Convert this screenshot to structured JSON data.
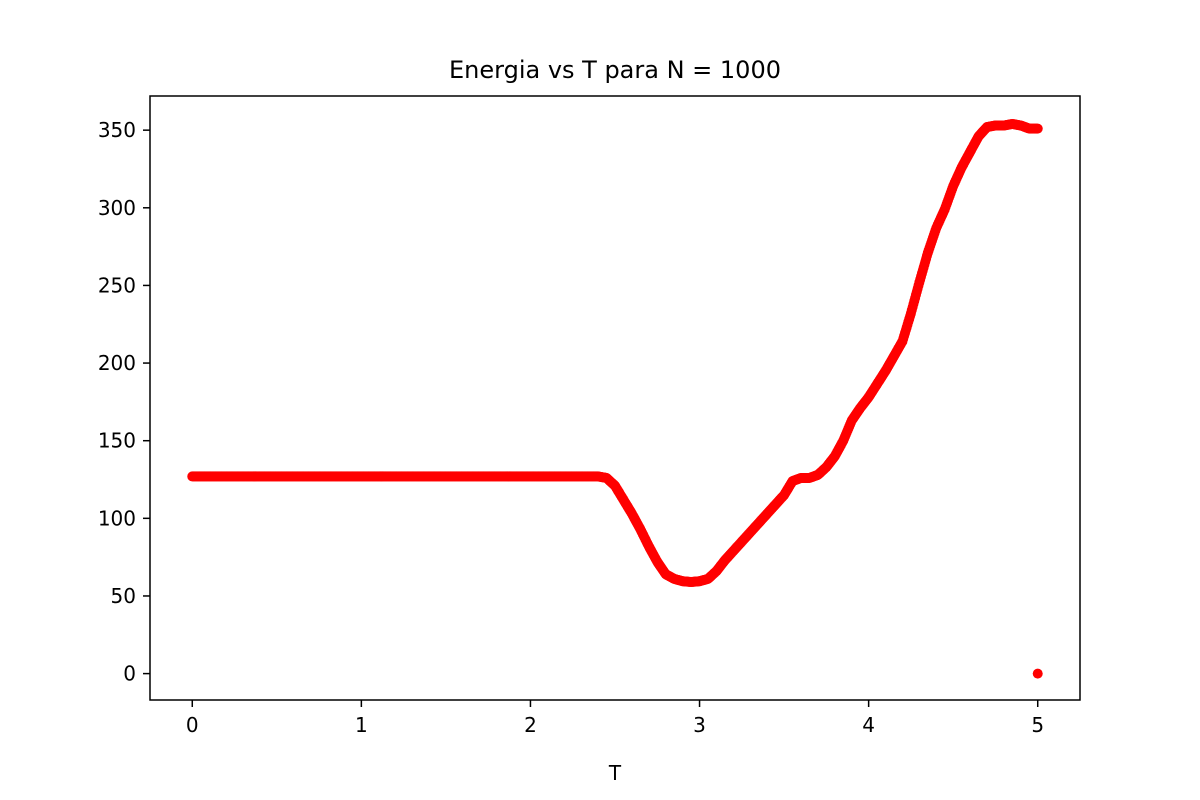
{
  "chart_data": {
    "type": "scatter",
    "title": "Energia vs T para N = 1000",
    "xlabel": "T",
    "ylabel": "",
    "xlim": [
      -0.25,
      5.25
    ],
    "ylim": [
      -17,
      372
    ],
    "xticks": [
      0,
      1,
      2,
      3,
      4,
      5
    ],
    "yticks": [
      0,
      50,
      100,
      150,
      200,
      250,
      300,
      350
    ],
    "grid": false,
    "legend": "none",
    "series": [
      {
        "color": "#ff0000",
        "curve_points": [
          [
            0.0,
            127
          ],
          [
            2.4,
            127
          ],
          [
            2.45,
            126
          ],
          [
            2.5,
            121
          ],
          [
            2.55,
            112
          ],
          [
            2.6,
            103
          ],
          [
            2.65,
            93
          ],
          [
            2.7,
            82
          ],
          [
            2.75,
            72
          ],
          [
            2.8,
            64
          ],
          [
            2.85,
            61
          ],
          [
            2.9,
            59.5
          ],
          [
            2.95,
            59
          ],
          [
            3.0,
            59.5
          ],
          [
            3.05,
            61
          ],
          [
            3.1,
            66
          ],
          [
            3.15,
            73
          ],
          [
            3.2,
            79
          ],
          [
            3.3,
            91
          ],
          [
            3.4,
            103
          ],
          [
            3.5,
            115
          ],
          [
            3.55,
            124
          ],
          [
            3.6,
            126
          ],
          [
            3.65,
            126
          ],
          [
            3.7,
            128
          ],
          [
            3.75,
            133
          ],
          [
            3.8,
            140
          ],
          [
            3.85,
            150
          ],
          [
            3.9,
            163
          ],
          [
            3.95,
            171
          ],
          [
            4.0,
            178
          ],
          [
            4.1,
            195
          ],
          [
            4.2,
            214
          ],
          [
            4.25,
            232
          ],
          [
            4.3,
            252
          ],
          [
            4.35,
            271
          ],
          [
            4.4,
            287
          ],
          [
            4.45,
            299
          ],
          [
            4.5,
            314
          ],
          [
            4.55,
            326
          ],
          [
            4.6,
            336
          ],
          [
            4.65,
            346
          ],
          [
            4.7,
            352
          ],
          [
            4.75,
            353
          ],
          [
            4.8,
            353
          ],
          [
            4.85,
            354
          ],
          [
            4.9,
            353
          ],
          [
            4.95,
            351
          ],
          [
            5.0,
            351
          ]
        ],
        "outlier": [
          5.0,
          0
        ]
      }
    ]
  }
}
